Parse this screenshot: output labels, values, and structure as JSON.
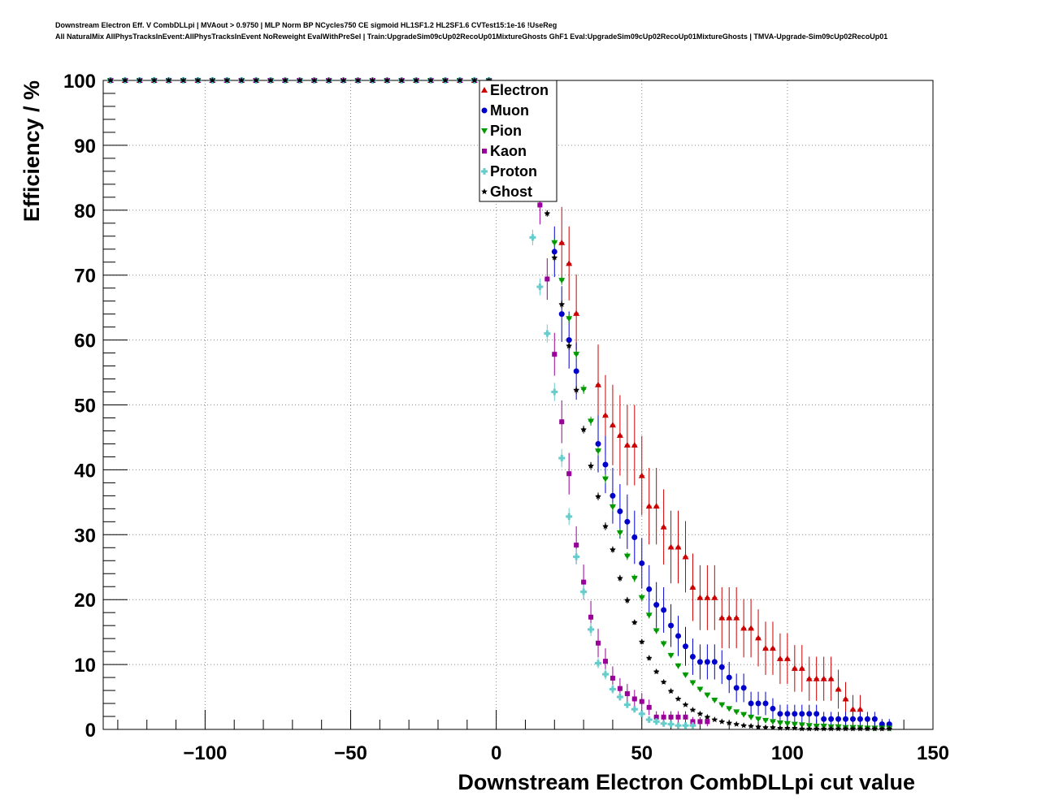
{
  "chart_data": {
    "type": "scatter",
    "title_line1": "Downstream Electron Eff. V CombDLLpi | MVAout > 0.9750 | MLP Norm BP NCycles750 CE sigmoid HL1SF1.2 HL2SF1.6 CVTest15:1e-16 !UseReg",
    "title_line2": "All NaturalMix AllPhysTracksInEvent:AllPhysTracksInEvent NoReweight EvalWithPreSel | Train:UpgradeSim09cUp02RecoUp01MixtureGhosts GhF1 Eval:UpgradeSim09cUp02RecoUp01MixtureGhosts | TMVA-Upgrade-Sim09cUp02RecoUp01",
    "xlabel": "Downstream Electron CombDLLpi cut value",
    "ylabel": "Efficiency / %",
    "xlim": [
      -135,
      150
    ],
    "ylim": [
      0,
      100
    ],
    "xticks": [
      -100,
      -50,
      0,
      50,
      100,
      150
    ],
    "xtick_labels": [
      "−100",
      "−50",
      "0",
      "50",
      "100",
      "150"
    ],
    "yticks": [
      0,
      10,
      20,
      30,
      40,
      50,
      60,
      70,
      80,
      90,
      100
    ],
    "ytick_labels": [
      "0",
      "10",
      "20",
      "30",
      "40",
      "50",
      "60",
      "70",
      "80",
      "90",
      "100"
    ],
    "grid": true,
    "legend_position": "top-center",
    "x": [
      -132.5,
      -127.5,
      -122.5,
      -117.5,
      -112.5,
      -107.5,
      -102.5,
      -97.5,
      -92.5,
      -87.5,
      -82.5,
      -77.5,
      -72.5,
      -67.5,
      -62.5,
      -57.5,
      -52.5,
      -47.5,
      -42.5,
      -37.5,
      -32.5,
      -27.5,
      -22.5,
      -17.5,
      -12.5,
      -7.5,
      -2.5,
      2.5,
      7.5,
      12.5,
      15,
      17.5,
      20,
      22.5,
      25,
      27.5,
      30,
      32.5,
      35,
      37.5,
      40,
      42.5,
      45,
      47.5,
      50,
      52.5,
      55,
      57.5,
      60,
      62.5,
      65,
      67.5,
      70,
      72.5,
      75,
      77.5,
      80,
      82.5,
      85,
      87.5,
      90,
      92.5,
      95,
      97.5,
      100,
      102.5,
      105,
      107.5,
      110,
      112.5,
      115,
      117.5,
      120,
      122.5,
      125,
      127.5,
      130,
      132.5,
      135,
      137.5,
      140,
      142.5,
      145,
      147.5
    ],
    "series": [
      {
        "name": "Electron",
        "color": "#cc0000",
        "marker": "triangle-up",
        "values": [
          100,
          100,
          100,
          100,
          100,
          100,
          100,
          100,
          100,
          100,
          100,
          100,
          100,
          100,
          100,
          100,
          100,
          100,
          100,
          100,
          100,
          100,
          100,
          100,
          100,
          100,
          100,
          null,
          null,
          null,
          null,
          null,
          null,
          75.0,
          71.8,
          64.1,
          null,
          null,
          53.1,
          48.4,
          46.9,
          45.3,
          43.8,
          43.8,
          39.1,
          34.4,
          34.4,
          31.2,
          28.1,
          28.1,
          26.6,
          21.9,
          20.3,
          20.3,
          20.3,
          17.2,
          17.2,
          17.2,
          15.6,
          15.6,
          14.1,
          12.5,
          12.5,
          10.9,
          10.9,
          9.4,
          9.4,
          7.8,
          7.8,
          7.8,
          7.8,
          6.2,
          4.7,
          3.1,
          3.1,
          null,
          null,
          null,
          null,
          null,
          null,
          null,
          null,
          null
        ],
        "err": [
          0,
          0,
          0,
          0,
          0,
          0,
          0,
          0,
          0,
          0,
          0,
          0,
          0,
          0,
          0,
          0,
          0,
          0,
          0,
          0,
          0,
          0,
          0,
          0,
          0,
          0,
          0,
          null,
          null,
          null,
          null,
          null,
          null,
          5.5,
          5.7,
          6.0,
          null,
          null,
          6.2,
          6.2,
          6.2,
          6.2,
          6.2,
          6.2,
          6.1,
          5.9,
          5.9,
          5.8,
          5.6,
          5.6,
          5.5,
          5.2,
          5.0,
          5.0,
          5.0,
          4.7,
          4.7,
          4.7,
          4.5,
          4.5,
          4.4,
          4.1,
          4.1,
          3.9,
          3.9,
          3.6,
          3.6,
          3.4,
          3.4,
          3.4,
          3.4,
          3.0,
          2.6,
          2.2,
          2.2,
          null,
          null,
          null,
          null,
          null,
          null,
          null,
          null,
          null
        ]
      },
      {
        "name": "Muon",
        "color": "#0000cc",
        "marker": "circle",
        "values": [
          100,
          100,
          100,
          100,
          100,
          100,
          100,
          100,
          100,
          100,
          100,
          100,
          100,
          100,
          100,
          100,
          100,
          100,
          100,
          100,
          100,
          100,
          100,
          100,
          100,
          100,
          100,
          null,
          null,
          null,
          null,
          null,
          73.6,
          64.0,
          60.0,
          55.2,
          null,
          null,
          44.0,
          40.8,
          36.0,
          33.6,
          32.0,
          29.6,
          25.6,
          21.6,
          19.2,
          18.4,
          16.0,
          14.4,
          12.8,
          11.2,
          10.4,
          10.4,
          10.4,
          9.6,
          8.0,
          6.4,
          6.4,
          4.0,
          4.0,
          4.0,
          3.2,
          2.4,
          2.4,
          2.4,
          2.4,
          2.4,
          2.4,
          1.6,
          1.6,
          1.6,
          1.6,
          1.6,
          1.6,
          1.6,
          1.6,
          0.8,
          0.8,
          null,
          null,
          null,
          null,
          null
        ],
        "err": [
          0,
          0,
          0,
          0,
          0,
          0,
          0,
          0,
          0,
          0,
          0,
          0,
          0,
          0,
          0,
          0,
          0,
          0,
          0,
          0,
          0,
          0,
          0,
          0,
          0,
          0,
          0,
          null,
          null,
          null,
          null,
          null,
          3.9,
          4.3,
          4.4,
          4.4,
          null,
          null,
          4.4,
          4.4,
          4.3,
          4.2,
          4.2,
          4.1,
          3.9,
          3.7,
          3.5,
          3.5,
          3.3,
          3.1,
          3.0,
          2.8,
          2.7,
          2.7,
          2.7,
          2.6,
          2.4,
          2.2,
          2.2,
          1.8,
          1.8,
          1.8,
          1.6,
          1.4,
          1.4,
          1.4,
          1.4,
          1.4,
          1.4,
          1.1,
          1.1,
          1.1,
          1.1,
          1.1,
          1.1,
          1.1,
          1.1,
          0.8,
          0.8,
          null,
          null,
          null,
          null,
          null
        ]
      },
      {
        "name": "Pion",
        "color": "#009900",
        "marker": "triangle-down",
        "values": [
          100,
          100,
          100,
          100,
          100,
          100,
          100,
          100,
          100,
          100,
          100,
          100,
          100,
          100,
          100,
          100,
          100,
          100,
          100,
          100,
          100,
          100,
          100,
          100,
          100,
          100,
          100,
          null,
          null,
          null,
          null,
          null,
          75.0,
          69.2,
          63.3,
          57.8,
          52.4,
          47.5,
          42.9,
          38.6,
          34.3,
          30.3,
          26.7,
          23.3,
          20.3,
          17.6,
          15.2,
          13.2,
          11.4,
          9.8,
          8.4,
          7.2,
          6.2,
          5.3,
          4.5,
          3.8,
          3.2,
          2.7,
          2.3,
          1.9,
          1.6,
          1.4,
          1.2,
          1.0,
          0.9,
          0.8,
          0.7,
          0.6,
          0.5,
          0.5,
          0.4,
          0.4,
          0.3,
          0.3,
          0.3,
          0.2,
          0.2,
          0.2,
          0.2,
          null,
          null,
          null,
          null,
          null
        ],
        "err": [
          0,
          0,
          0,
          0,
          0,
          0,
          0,
          0,
          0,
          0,
          0,
          0,
          0,
          0,
          0,
          0,
          0,
          0,
          0,
          0,
          0,
          0,
          0,
          0,
          0,
          0,
          0,
          null,
          null,
          null,
          null,
          null,
          0.6,
          0.7,
          0.7,
          0.7,
          0.7,
          0.7,
          0.7,
          0.7,
          0.7,
          0.7,
          0.6,
          0.6,
          0.6,
          0.5,
          0.5,
          0.5,
          0.4,
          0.4,
          0.4,
          0.4,
          0.3,
          0.3,
          0.3,
          0.3,
          0.2,
          0.2,
          0.2,
          0.2,
          0.2,
          0.1,
          0.1,
          0.1,
          0.1,
          0.1,
          0.1,
          0.1,
          0.1,
          0.1,
          0.1,
          0.1,
          0.1,
          0.1,
          0.1,
          0.1,
          0.1,
          0.1,
          0.1,
          null,
          null,
          null,
          null,
          null
        ]
      },
      {
        "name": "Kaon",
        "color": "#990099",
        "marker": "square",
        "values": [
          100,
          100,
          100,
          100,
          100,
          100,
          100,
          100,
          100,
          100,
          100,
          100,
          100,
          100,
          100,
          100,
          100,
          100,
          100,
          100,
          100,
          100,
          100,
          100,
          100,
          100,
          100,
          null,
          null,
          null,
          80.8,
          69.4,
          57.8,
          47.4,
          39.4,
          28.4,
          22.7,
          17.3,
          13.3,
          10.5,
          7.9,
          6.3,
          5.5,
          4.7,
          4.3,
          3.4,
          1.9,
          1.9,
          1.9,
          1.9,
          1.9,
          1.2,
          1.2,
          1.2,
          null,
          null,
          null,
          null,
          null,
          null,
          null,
          null,
          null,
          null,
          null,
          null,
          null,
          null,
          null,
          null,
          null,
          null,
          null,
          null,
          null,
          null,
          null,
          null,
          null,
          null,
          null,
          null,
          null,
          null
        ],
        "err": [
          0,
          0,
          0,
          0,
          0,
          0,
          0,
          0,
          0,
          0,
          0,
          0,
          0,
          0,
          0,
          0,
          0,
          0,
          0,
          0,
          0,
          0,
          0,
          0,
          0,
          0,
          0,
          null,
          null,
          null,
          3.0,
          3.2,
          3.3,
          3.3,
          3.2,
          2.9,
          2.7,
          2.5,
          2.2,
          2.0,
          1.8,
          1.6,
          1.5,
          1.4,
          1.3,
          1.2,
          0.9,
          0.9,
          0.9,
          0.9,
          0.9,
          0.7,
          0.7,
          0.7,
          null,
          null,
          null,
          null,
          null,
          null,
          null,
          null,
          null,
          null,
          null,
          null,
          null,
          null,
          null,
          null,
          null,
          null,
          null,
          null,
          null,
          null,
          null,
          null,
          null,
          null,
          null,
          null,
          null,
          null
        ]
      },
      {
        "name": "Proton",
        "color": "#66cccc",
        "marker": "cross",
        "values": [
          100,
          100,
          100,
          100,
          100,
          100,
          100,
          100,
          100,
          100,
          100,
          100,
          100,
          100,
          100,
          100,
          100,
          100,
          100,
          100,
          100,
          100,
          100,
          100,
          100,
          100,
          100,
          null,
          null,
          75.8,
          68.2,
          61.0,
          52.0,
          41.8,
          32.8,
          26.6,
          21.2,
          15.4,
          10.2,
          8.5,
          6.2,
          5.0,
          3.8,
          3.1,
          2.4,
          1.5,
          1.2,
          0.9,
          0.8,
          0.6,
          0.6,
          0.6,
          null,
          null,
          null,
          null,
          null,
          null,
          null,
          null,
          null,
          null,
          null,
          null,
          null,
          null,
          null,
          null,
          null,
          null,
          null,
          null,
          null,
          null,
          null,
          null,
          null,
          null,
          null,
          null,
          null,
          null,
          null,
          null
        ],
        "err": [
          0,
          0,
          0,
          0,
          0,
          0,
          0,
          0,
          0,
          0,
          0,
          0,
          0,
          0,
          0,
          0,
          0,
          0,
          0,
          0,
          0,
          0,
          0,
          0,
          0,
          0,
          0,
          null,
          null,
          1.2,
          1.3,
          1.4,
          1.4,
          1.4,
          1.3,
          1.2,
          1.1,
          1.0,
          0.8,
          0.8,
          0.7,
          0.6,
          0.5,
          0.5,
          0.4,
          0.3,
          0.3,
          0.3,
          0.3,
          0.2,
          0.2,
          0.2,
          null,
          null,
          null,
          null,
          null,
          null,
          null,
          null,
          null,
          null,
          null,
          null,
          null,
          null,
          null,
          null,
          null,
          null,
          null,
          null,
          null,
          null,
          null,
          null,
          null,
          null,
          null,
          null,
          null,
          null,
          null,
          null
        ]
      },
      {
        "name": "Ghost",
        "color": "#000000",
        "marker": "star",
        "values": [
          100,
          100,
          100,
          100,
          100,
          100,
          100,
          100,
          100,
          100,
          100,
          100,
          100,
          100,
          100,
          100,
          100,
          100,
          100,
          100,
          100,
          100,
          100,
          100,
          100,
          100,
          100,
          null,
          null,
          null,
          null,
          79.5,
          72.7,
          65.5,
          59.1,
          52.3,
          46.2,
          40.6,
          35.9,
          31.3,
          27.7,
          23.3,
          19.9,
          16.5,
          13.5,
          11.0,
          8.9,
          7.3,
          5.9,
          4.7,
          3.8,
          3.0,
          2.4,
          1.9,
          1.5,
          1.2,
          1.0,
          0.8,
          0.6,
          0.5,
          0.4,
          0.3,
          0.3,
          0.2,
          0.2,
          0.2,
          0.1,
          0.1,
          0.1,
          0.1,
          0.1,
          0.1,
          0.1,
          0.1,
          0.1,
          0.1,
          0.1,
          0.1,
          0.1,
          null,
          null,
          null,
          null,
          null
        ],
        "err": [
          0,
          0,
          0,
          0,
          0,
          0,
          0,
          0,
          0,
          0,
          0,
          0,
          0,
          0,
          0,
          0,
          0,
          0,
          0,
          0,
          0,
          0,
          0,
          0,
          0,
          0,
          0,
          null,
          null,
          null,
          null,
          0.5,
          0.5,
          0.6,
          0.6,
          0.6,
          0.6,
          0.6,
          0.6,
          0.6,
          0.5,
          0.5,
          0.5,
          0.4,
          0.4,
          0.4,
          0.3,
          0.3,
          0.3,
          0.2,
          0.2,
          0.2,
          0.2,
          0.2,
          0.1,
          0.1,
          0.1,
          0.1,
          0.1,
          0.1,
          0.1,
          0.1,
          0.1,
          0.1,
          0.1,
          0.1,
          0.1,
          0.1,
          0.1,
          0.1,
          0.1,
          0.1,
          0.1,
          0.1,
          0.1,
          0.1,
          0.1,
          0.1,
          0.1,
          null,
          null,
          null,
          null,
          null
        ]
      }
    ]
  }
}
